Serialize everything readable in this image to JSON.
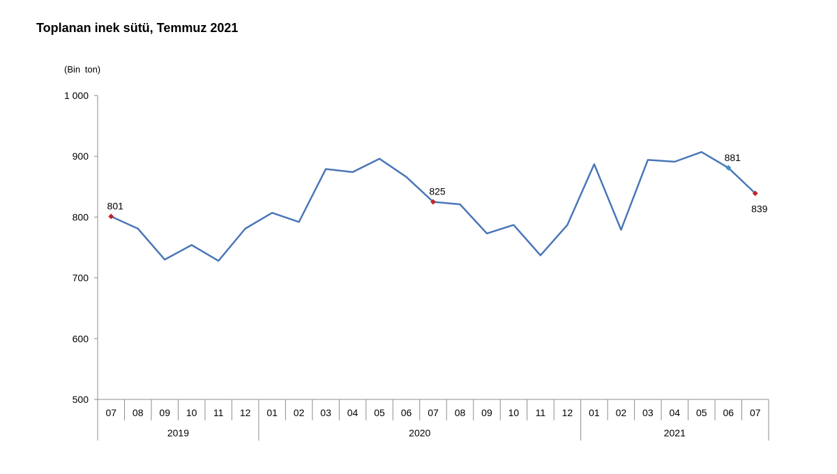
{
  "chart_data": {
    "type": "line",
    "title": "Toplanan inek sütü, Temmuz 2021",
    "unit_label": "(Bin  ton)",
    "ylim": [
      500,
      1000
    ],
    "y_ticks": [
      500,
      600,
      700,
      800,
      900,
      1000
    ],
    "y_tick_labels": [
      "500",
      "600",
      "700",
      "800",
      "900",
      "1 000"
    ],
    "categories": [
      "07",
      "08",
      "09",
      "10",
      "11",
      "12",
      "01",
      "02",
      "03",
      "04",
      "05",
      "06",
      "07",
      "08",
      "09",
      "10",
      "11",
      "12",
      "01",
      "02",
      "03",
      "04",
      "05",
      "06",
      "07"
    ],
    "years": [
      {
        "label": "2019",
        "start": 0,
        "end": 5
      },
      {
        "label": "2020",
        "start": 6,
        "end": 17
      },
      {
        "label": "2021",
        "start": 18,
        "end": 24
      }
    ],
    "series": [
      {
        "color": "#4a76b8",
        "values": [
          801,
          781,
          730,
          754,
          728,
          781,
          807,
          792,
          879,
          874,
          896,
          866,
          825,
          821,
          773,
          787,
          737,
          787,
          887,
          779,
          894,
          891,
          907,
          881,
          839
        ]
      }
    ],
    "annotations": [
      {
        "index": 0,
        "label": "801",
        "marker_color": "#c0262c",
        "position": "above"
      },
      {
        "index": 12,
        "label": "825",
        "marker_color": "#c0262c",
        "position": "above"
      },
      {
        "index": 23,
        "label": "881",
        "marker_color": "#3c8fc4",
        "position": "above"
      },
      {
        "index": 24,
        "label": "839",
        "marker_color": "#c0262c",
        "position": "below"
      }
    ],
    "grid": false,
    "legend": "none"
  }
}
